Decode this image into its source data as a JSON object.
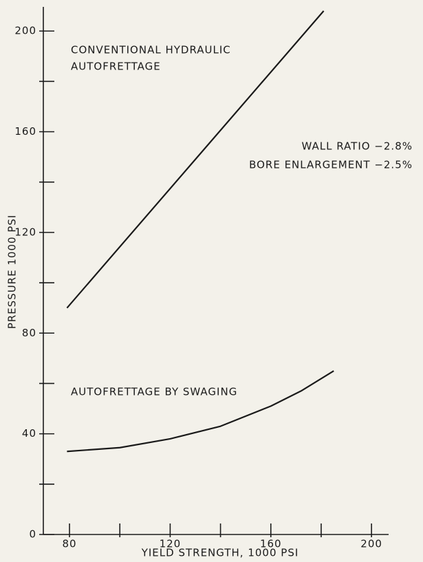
{
  "chart_data": {
    "type": "line",
    "xlabel": "YIELD STRENGTH, 1000 PSI",
    "ylabel": "PRESSURE 1000 PSI",
    "xlim": [
      69.6,
      206.8
    ],
    "ylim": [
      0,
      209.6
    ],
    "xticks": [
      80,
      120,
      160,
      200
    ],
    "xminorticks": [
      100,
      140,
      180
    ],
    "yticks": [
      0,
      40,
      80,
      120,
      160,
      200
    ],
    "yminorticks": [
      20,
      60,
      100,
      140,
      180
    ],
    "series": [
      {
        "color": "#1a1a1a",
        "x": [
          79,
          130,
          181
        ],
        "values": [
          90,
          149,
          208
        ]
      },
      {
        "color": "#1a1a1a",
        "x": [
          79,
          100,
          120,
          140,
          160,
          172,
          185
        ],
        "values": [
          33,
          34.5,
          38,
          43,
          51,
          57,
          65
        ]
      }
    ],
    "annotations": [
      "CONVENTIONAL HYDRAULIC",
      "AUTOFRETTAGE",
      "WALL RATIO −2.8%",
      "BORE ENLARGEMENT −2.5%",
      "AUTOFRETTAGE BY SWAGING"
    ]
  }
}
